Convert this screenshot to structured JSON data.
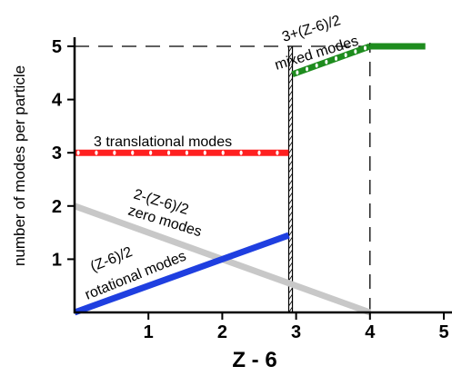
{
  "chart_data": {
    "type": "line",
    "xlabel": "Z - 6",
    "ylabel": "number of modes per particle",
    "xlim": [
      0,
      5
    ],
    "ylim": [
      0,
      5
    ],
    "x_ticks": [
      "1",
      "2",
      "3",
      "4",
      "5"
    ],
    "y_ticks": [
      "1",
      "2",
      "3",
      "4",
      "5"
    ],
    "grid": false,
    "colors": {
      "translational": "#ff2020",
      "rotational": "#1f3fe0",
      "zero": "#c8c8c8",
      "mixed": "#1e8c1e"
    },
    "series": [
      {
        "key": "translational",
        "x": [
          0,
          2.9
        ],
        "y": [
          3,
          3
        ]
      },
      {
        "key": "rotational",
        "x": [
          0,
          2.9
        ],
        "y": [
          0,
          1.45
        ]
      },
      {
        "key": "zero",
        "x": [
          0,
          4
        ],
        "y": [
          2,
          0
        ]
      },
      {
        "key": "mixed",
        "x": [
          2.95,
          4
        ],
        "y": [
          4.475,
          5
        ]
      },
      {
        "key": "mixed_flat",
        "x": [
          4,
          4.75
        ],
        "y": [
          5,
          5
        ]
      }
    ],
    "reference_lines": [
      {
        "kind": "vline",
        "x": 2.9,
        "style": "solid"
      },
      {
        "kind": "vline",
        "x": 2.95,
        "style": "solid"
      },
      {
        "kind": "vline",
        "x": 4,
        "style": "dashed"
      },
      {
        "kind": "hline",
        "y": 5,
        "style": "dashed"
      }
    ],
    "annotations": [
      {
        "text": "3 translational modes"
      },
      {
        "text": "2-(Z-6)/2"
      },
      {
        "text": "zero modes"
      },
      {
        "text": "(Z-6)/2"
      },
      {
        "text": "rotational modes"
      },
      {
        "text": "3+(Z-6)/2"
      },
      {
        "text": "mixed modes"
      }
    ]
  }
}
